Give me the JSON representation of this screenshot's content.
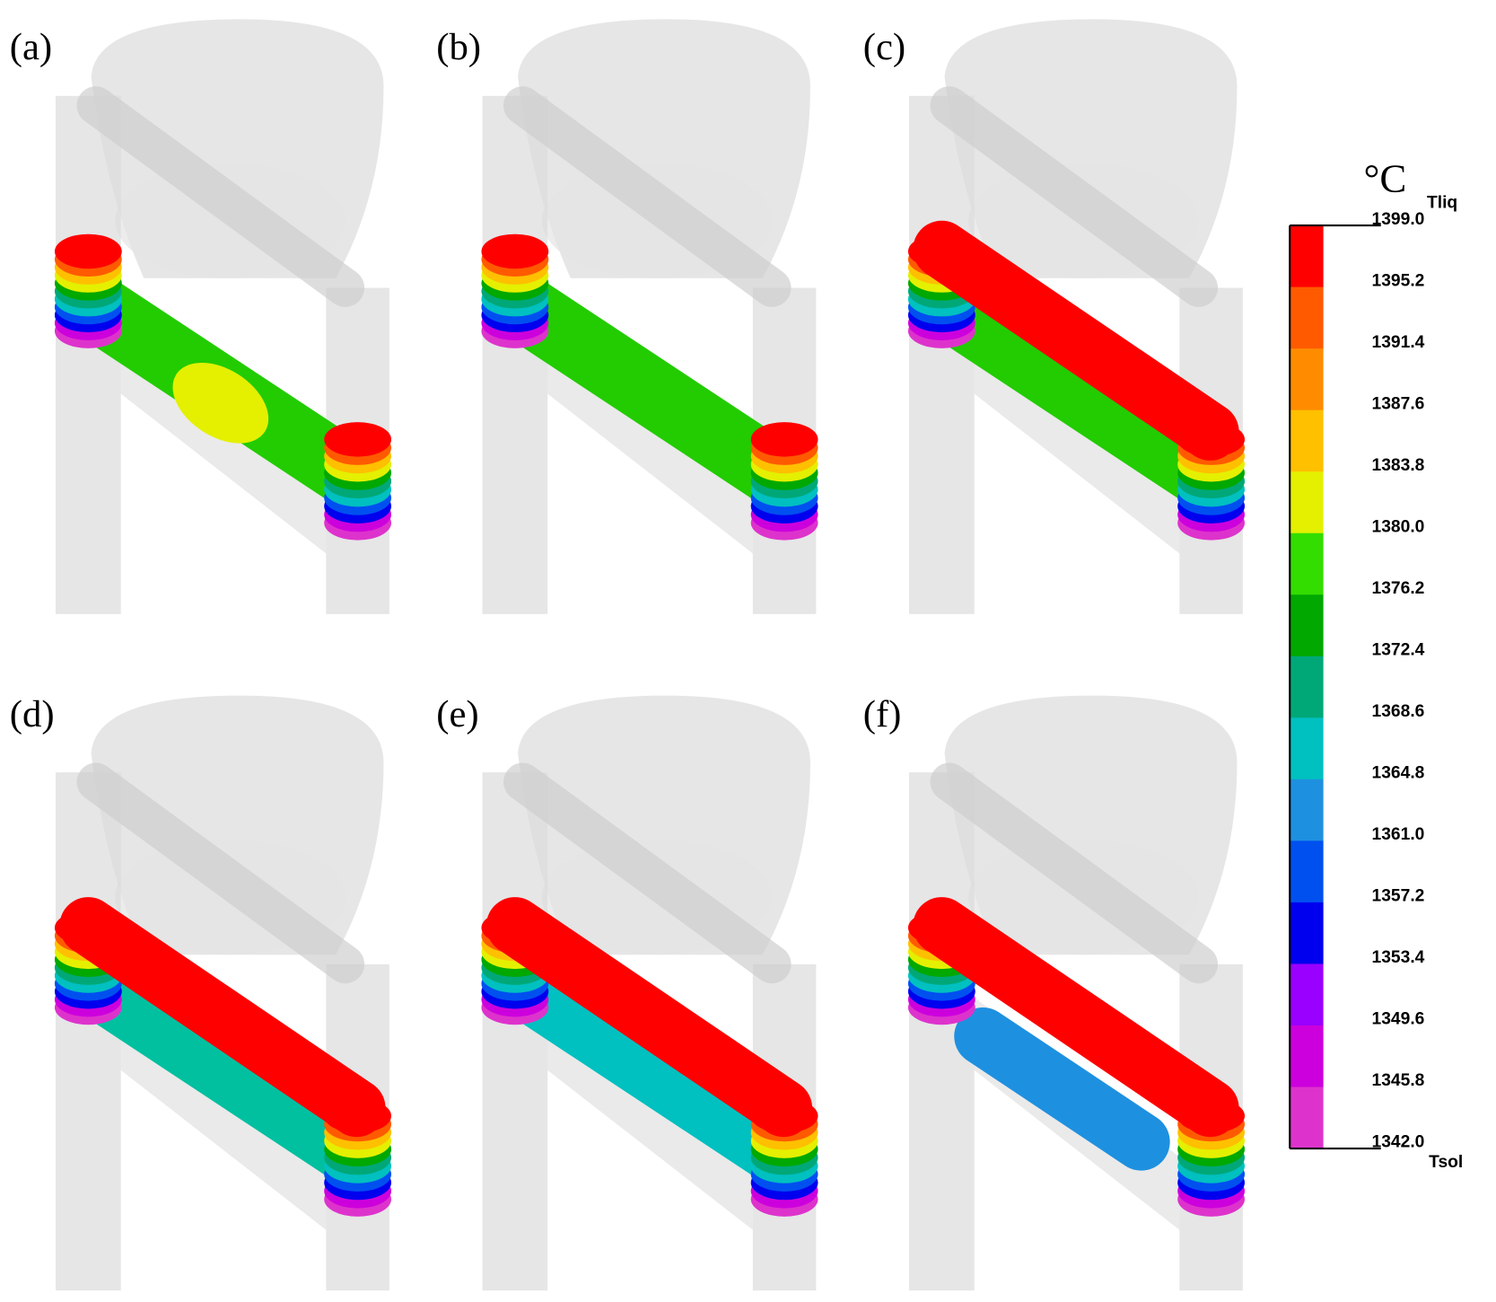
{
  "panels": [
    {
      "label": "(a)"
    },
    {
      "label": "(b)"
    },
    {
      "label": "(c)"
    },
    {
      "label": "(d)"
    },
    {
      "label": "(e)"
    },
    {
      "label": "(f)"
    }
  ],
  "colorbar": {
    "unit": "°C",
    "top_label": "Tliq",
    "bottom_label": "Tsol",
    "ticks": [
      "1399.0",
      "1395.2",
      "1391.4",
      "1387.6",
      "1383.8",
      "1380.0",
      "1376.2",
      "1372.4",
      "1368.6",
      "1364.8",
      "1361.0",
      "1357.2",
      "1353.4",
      "1349.6",
      "1345.8",
      "1342.0"
    ],
    "colors": [
      "#ff0000",
      "#ff5a00",
      "#ff8c00",
      "#ffc000",
      "#e4f000",
      "#33dd00",
      "#00a800",
      "#00a878",
      "#00c0c0",
      "#1e90e0",
      "#0050f0",
      "#0000ee",
      "#9900ff",
      "#cc00dd",
      "#dd33cc"
    ]
  }
}
